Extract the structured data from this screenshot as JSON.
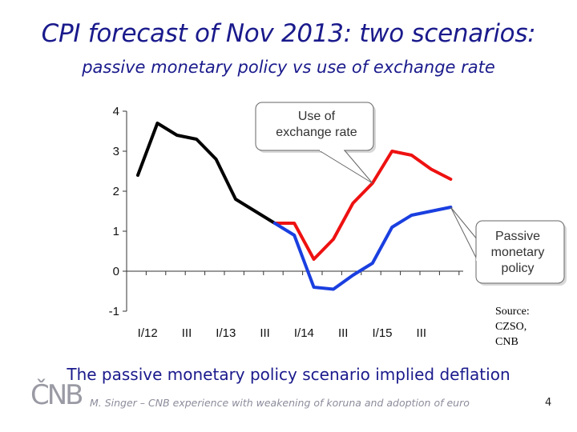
{
  "slide": {
    "title": "CPI forecast of Nov 2013: two scenarios:",
    "subtitle": "passive monetary policy vs use of exchange rate",
    "conclusion": "The passive monetary policy scenario implied deflation",
    "logo_text": "ČNB",
    "footer": "M. Singer – CNB experience with weakening of koruna and adoption of euro",
    "page_number": "4",
    "source_lines": [
      "Source:",
      "CZSO,",
      "CNB"
    ]
  },
  "callouts": {
    "exchange_rate": [
      "Use of",
      "exchange rate"
    ],
    "passive": [
      "Passive",
      "monetary",
      "policy"
    ]
  },
  "chart_data": {
    "type": "line",
    "title": "",
    "xlabel": "",
    "ylabel": "",
    "ylim": [
      -1,
      4
    ],
    "yticks": [
      -1,
      0,
      1,
      2,
      3,
      4
    ],
    "x_tick_labels": [
      "I/12",
      "III",
      "I/13",
      "III",
      "I/14",
      "III",
      "I/15",
      "III"
    ],
    "grid": false,
    "series": [
      {
        "color": "#000000",
        "points": [
          [
            0,
            2.4
          ],
          [
            1,
            3.7
          ],
          [
            2,
            3.4
          ],
          [
            3,
            3.3
          ],
          [
            4,
            2.8
          ],
          [
            5,
            1.8
          ],
          [
            6,
            1.5
          ],
          [
            7,
            1.2
          ]
        ]
      },
      {
        "color": "#ee1111",
        "points": [
          [
            7,
            1.2
          ],
          [
            8,
            1.2
          ],
          [
            9,
            0.3
          ],
          [
            10,
            0.8
          ],
          [
            11,
            1.7
          ],
          [
            12,
            2.2
          ],
          [
            13,
            3.0
          ],
          [
            14,
            2.9
          ],
          [
            15,
            2.55
          ],
          [
            16,
            2.3
          ]
        ]
      },
      {
        "color": "#1a3fe0",
        "points": [
          [
            7,
            1.2
          ],
          [
            8,
            0.9
          ],
          [
            9,
            -0.4
          ],
          [
            10,
            -0.45
          ],
          [
            11,
            -0.1
          ],
          [
            12,
            0.2
          ],
          [
            13,
            1.1
          ],
          [
            14,
            1.4
          ],
          [
            15,
            1.5
          ],
          [
            16,
            1.6
          ]
        ]
      }
    ]
  }
}
